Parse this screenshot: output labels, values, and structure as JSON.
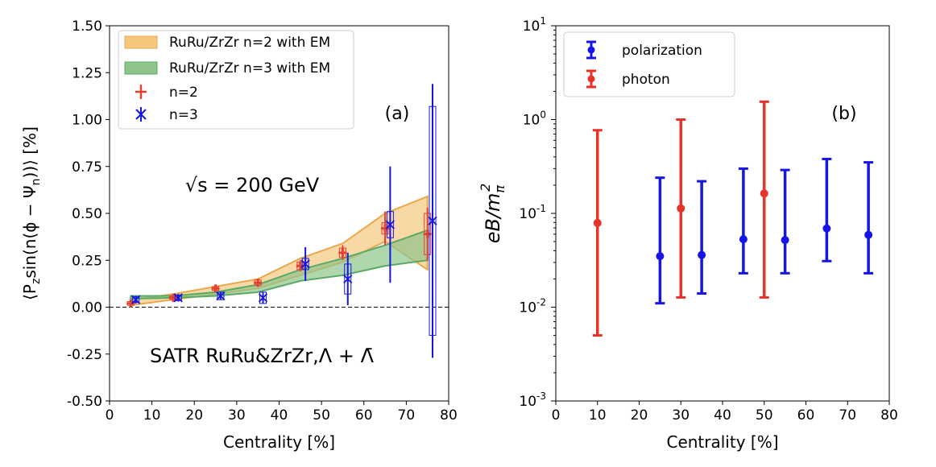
{
  "chart_data": [
    {
      "type": "scatter",
      "panel_label": "(a)",
      "ylabel": "⟨P",
      "ylabel_sub": "z",
      "ylabel_mid": "sin(n(ϕ − Ψ",
      "ylabel_sub2": "n",
      "ylabel_end": "))⟩ [%]",
      "xlabel": "Centrality [%]",
      "xlim": [
        0,
        80
      ],
      "ylim": [
        -0.5,
        1.5
      ],
      "xticks": [
        "0",
        "10",
        "20",
        "30",
        "40",
        "50",
        "60",
        "70",
        "80"
      ],
      "yticks": [
        "-0.50",
        "-0.25",
        "0.00",
        "0.25",
        "0.50",
        "0.75",
        "1.00",
        "1.25",
        "1.50"
      ],
      "energy_label": "√s = 200 GeV",
      "system_label": "SATR RuRu&ZrZr,Λ + Λ̄",
      "legend": {
        "position": "top-left",
        "entries": [
          "RuRu/ZrZr n=2 with EM",
          "RuRu/ZrZr n=3 with EM",
          "n=2",
          "n=3"
        ]
      },
      "bands": [
        {
          "name": "RuRu/ZrZr n=2 with EM",
          "color": "#f5c77e",
          "edge": "#e8a84e",
          "x": [
            5,
            15,
            25,
            35,
            45,
            55,
            65,
            75
          ],
          "upper": [
            0.04,
            0.07,
            0.11,
            0.15,
            0.26,
            0.34,
            0.5,
            0.59
          ],
          "lower": [
            0.01,
            0.04,
            0.07,
            0.1,
            0.17,
            0.24,
            0.35,
            0.2
          ]
        },
        {
          "name": "RuRu/ZrZr n=3 with EM",
          "color": "#8fc48a",
          "edge": "#5aaa66",
          "x": [
            5,
            15,
            25,
            35,
            45,
            55,
            65,
            75
          ],
          "upper": [
            0.06,
            0.06,
            0.08,
            0.12,
            0.2,
            0.26,
            0.33,
            0.41
          ],
          "lower": [
            0.045,
            0.05,
            0.06,
            0.08,
            0.14,
            0.17,
            0.22,
            0.25
          ]
        }
      ],
      "series": [
        {
          "name": "n=2",
          "color": "#e8402e",
          "marker": "plus",
          "x": [
            5,
            15,
            25,
            35,
            45,
            55,
            65,
            75
          ],
          "y": [
            0.02,
            0.05,
            0.1,
            0.13,
            0.22,
            0.29,
            0.42,
            0.39
          ],
          "stat_err": [
            0.02,
            0.015,
            0.015,
            0.02,
            0.03,
            0.04,
            0.09,
            0.14
          ],
          "sys_err": [
            0.01,
            0.01,
            0.01,
            0.015,
            0.02,
            0.025,
            0.03,
            0.11
          ]
        },
        {
          "name": "n=3",
          "color": "#1515e6",
          "marker": "x",
          "x": [
            6.2,
            16.2,
            26.2,
            36.2,
            46.2,
            56.2,
            66.2,
            76.2
          ],
          "y": [
            0.04,
            0.05,
            0.06,
            0.05,
            0.23,
            0.15,
            0.44,
            0.46
          ],
          "stat_err": [
            0.02,
            0.02,
            0.02,
            0.03,
            0.09,
            0.14,
            0.31,
            0.73
          ],
          "sys_err": [
            0.015,
            0.015,
            0.02,
            0.03,
            0.03,
            0.08,
            0.07,
            0.61
          ]
        }
      ]
    },
    {
      "type": "scatter",
      "panel_label": "(b)",
      "ylabel": "eB/m",
      "ylabel_sub": "π",
      "ylabel_sup": "2",
      "xlabel": "Centrality [%]",
      "yscale": "log",
      "xlim": [
        0,
        80
      ],
      "ylim": [
        0.001,
        10
      ],
      "xticks": [
        "0",
        "10",
        "20",
        "30",
        "40",
        "50",
        "60",
        "70",
        "80"
      ],
      "yticks": [
        {
          "base": "10",
          "exp": "-3"
        },
        {
          "base": "10",
          "exp": "-2"
        },
        {
          "base": "10",
          "exp": "-1"
        },
        {
          "base": "10",
          "exp": "0"
        },
        {
          "base": "10",
          "exp": "1"
        }
      ],
      "legend": {
        "position": "top-left",
        "entries": [
          "polarization",
          "photon"
        ]
      },
      "series": [
        {
          "name": "polarization",
          "color": "#1515e6",
          "x": [
            25,
            35,
            45,
            55,
            65,
            75
          ],
          "y": [
            0.035,
            0.036,
            0.053,
            0.052,
            0.069,
            0.059
          ],
          "err_low": [
            0.011,
            0.014,
            0.023,
            0.023,
            0.031,
            0.023
          ],
          "err_high": [
            0.24,
            0.22,
            0.3,
            0.29,
            0.38,
            0.35
          ]
        },
        {
          "name": "photon",
          "color": "#e8332b",
          "x": [
            10,
            30,
            50
          ],
          "y": [
            0.079,
            0.113,
            0.163
          ],
          "err_low": [
            0.005,
            0.0127,
            0.0127
          ],
          "err_high": [
            0.77,
            1.0,
            1.55
          ]
        }
      ]
    }
  ]
}
